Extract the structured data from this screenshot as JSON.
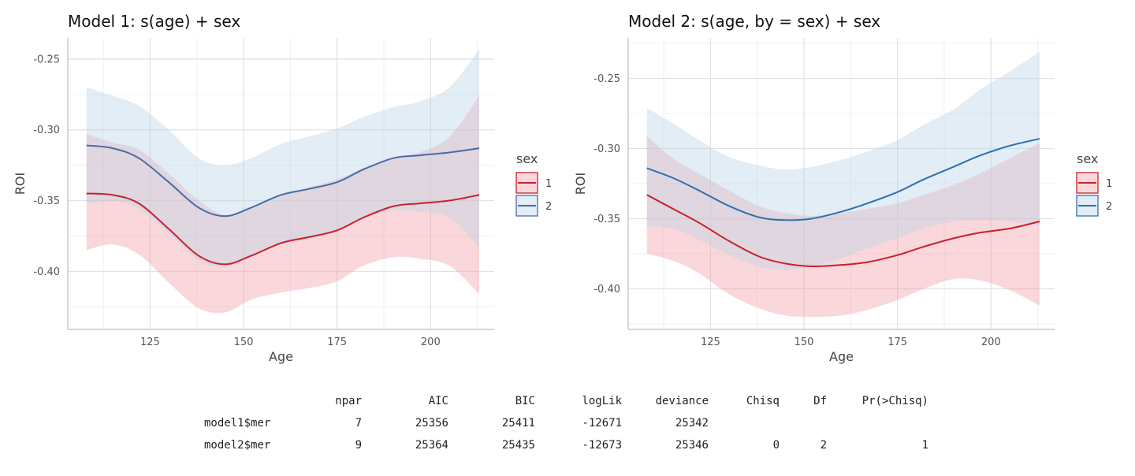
{
  "chart_data": [
    {
      "type": "line",
      "title": "Model 1: s(age) + sex",
      "xlabel": "Age",
      "ylabel": "ROI",
      "xlim": [
        103,
        217
      ],
      "ylim": [
        -0.441,
        -0.235
      ],
      "xticks": [
        125,
        150,
        175,
        200
      ],
      "xtick_labels": [
        "125",
        "150",
        "175",
        "200"
      ],
      "yticks": [
        -0.25,
        -0.3,
        -0.35,
        -0.4
      ],
      "ytick_labels": [
        "-0.25",
        "-0.30",
        "-0.35",
        "-0.40"
      ],
      "grid": true,
      "legend": {
        "title": "sex",
        "position": "right"
      },
      "series": [
        {
          "name": "1",
          "color": "#C8202E",
          "fill": "#F4A0A8",
          "x": [
            108,
            115,
            122,
            130,
            138,
            145,
            152,
            160,
            167,
            175,
            182,
            190,
            197,
            205,
            213
          ],
          "y": [
            -0.345,
            -0.346,
            -0.352,
            -0.37,
            -0.389,
            -0.395,
            -0.389,
            -0.38,
            -0.376,
            -0.371,
            -0.362,
            -0.354,
            -0.352,
            -0.35,
            -0.346
          ],
          "lower": [
            -0.385,
            -0.381,
            -0.388,
            -0.408,
            -0.426,
            -0.429,
            -0.42,
            -0.415,
            -0.412,
            -0.407,
            -0.396,
            -0.39,
            -0.391,
            -0.396,
            -0.416
          ],
          "upper": [
            -0.303,
            -0.309,
            -0.314,
            -0.331,
            -0.35,
            -0.36,
            -0.356,
            -0.347,
            -0.341,
            -0.335,
            -0.327,
            -0.32,
            -0.316,
            -0.305,
            -0.276
          ]
        },
        {
          "name": "2",
          "color": "#4A6AA8",
          "fill": "#BBD3EA",
          "x": [
            108,
            115,
            122,
            130,
            138,
            145,
            152,
            160,
            167,
            175,
            182,
            190,
            197,
            205,
            213
          ],
          "y": [
            -0.311,
            -0.313,
            -0.32,
            -0.337,
            -0.355,
            -0.361,
            -0.355,
            -0.346,
            -0.342,
            -0.337,
            -0.328,
            -0.32,
            -0.318,
            -0.316,
            -0.313
          ],
          "lower": [
            -0.352,
            -0.35,
            -0.356,
            -0.373,
            -0.392,
            -0.397,
            -0.389,
            -0.381,
            -0.378,
            -0.372,
            -0.363,
            -0.357,
            -0.358,
            -0.362,
            -0.383
          ],
          "upper": [
            -0.27,
            -0.276,
            -0.283,
            -0.3,
            -0.32,
            -0.325,
            -0.32,
            -0.31,
            -0.305,
            -0.299,
            -0.291,
            -0.284,
            -0.28,
            -0.27,
            -0.243
          ]
        }
      ]
    },
    {
      "type": "line",
      "title": "Model 2: s(age, by = sex) + sex",
      "xlabel": "Age",
      "ylabel": "ROI",
      "xlim": [
        103,
        217
      ],
      "ylim": [
        -0.429,
        -0.221
      ],
      "xticks": [
        125,
        150,
        175,
        200
      ],
      "xtick_labels": [
        "125",
        "150",
        "175",
        "200"
      ],
      "yticks": [
        -0.25,
        -0.3,
        -0.35,
        -0.4
      ],
      "ytick_labels": [
        "-0.25",
        "-0.30",
        "-0.35",
        "-0.40"
      ],
      "grid": true,
      "legend": {
        "title": "sex",
        "position": "right"
      },
      "series": [
        {
          "name": "1",
          "color": "#C8202E",
          "fill": "#F4A0A8",
          "x": [
            108,
            115,
            122,
            130,
            138,
            145,
            152,
            160,
            167,
            175,
            182,
            190,
            197,
            205,
            213
          ],
          "y": [
            -0.333,
            -0.343,
            -0.353,
            -0.366,
            -0.377,
            -0.382,
            -0.384,
            -0.383,
            -0.381,
            -0.376,
            -0.37,
            -0.364,
            -0.36,
            -0.357,
            -0.352
          ],
          "lower": [
            -0.375,
            -0.38,
            -0.389,
            -0.404,
            -0.414,
            -0.419,
            -0.42,
            -0.419,
            -0.415,
            -0.408,
            -0.4,
            -0.393,
            -0.394,
            -0.401,
            -0.412
          ],
          "upper": [
            -0.291,
            -0.307,
            -0.318,
            -0.33,
            -0.341,
            -0.346,
            -0.348,
            -0.346,
            -0.343,
            -0.339,
            -0.333,
            -0.326,
            -0.318,
            -0.307,
            -0.296
          ]
        },
        {
          "name": "2",
          "color": "#2F6FAA",
          "fill": "#BBD3EA",
          "x": [
            108,
            115,
            122,
            130,
            138,
            145,
            152,
            160,
            167,
            175,
            182,
            190,
            197,
            205,
            213
          ],
          "y": [
            -0.314,
            -0.321,
            -0.33,
            -0.341,
            -0.349,
            -0.351,
            -0.35,
            -0.345,
            -0.339,
            -0.331,
            -0.322,
            -0.313,
            -0.305,
            -0.298,
            -0.293
          ],
          "lower": [
            -0.356,
            -0.357,
            -0.365,
            -0.376,
            -0.384,
            -0.386,
            -0.384,
            -0.378,
            -0.371,
            -0.364,
            -0.357,
            -0.352,
            -0.351,
            -0.352,
            -0.355
          ],
          "upper": [
            -0.271,
            -0.282,
            -0.294,
            -0.306,
            -0.312,
            -0.315,
            -0.313,
            -0.308,
            -0.302,
            -0.294,
            -0.283,
            -0.272,
            -0.258,
            -0.245,
            -0.231
          ]
        }
      ]
    }
  ],
  "anova_table": {
    "headers": [
      "",
      "npar",
      "AIC",
      "BIC",
      "logLik",
      "deviance",
      "Chisq",
      "Df",
      "Pr(>Chisq)"
    ],
    "rows": [
      [
        "model1$mer",
        "7",
        "25356",
        "25411",
        "-12671",
        "25342",
        "",
        "",
        ""
      ],
      [
        "model2$mer",
        "9",
        "25364",
        "25435",
        "-12673",
        "25346",
        "0",
        "2",
        "1"
      ]
    ]
  }
}
